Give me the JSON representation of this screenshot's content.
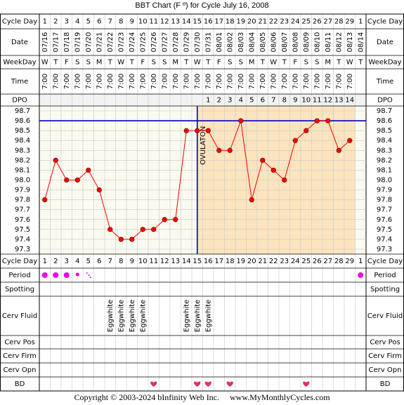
{
  "title": "BBT Chart (F º) for Cycle July 16, 2008",
  "footer": {
    "copyright": "Copyright © 2003-2024 bInfinity Web Inc.",
    "site": "www.MyMonthlyCycles.com"
  },
  "row_labels": {
    "cycle_day": "Cycle Day",
    "date": "Date",
    "weekday": "WeekDay",
    "time": "Time",
    "dpo": "DPO",
    "period": "Period",
    "spotting": "Spotting",
    "cerv_fluid": "Cerv Fluid",
    "cerv_pos": "Cerv Pos",
    "cerv_firm": "Cerv Firm",
    "cerv_opn": "Cerv Opn",
    "bd": "BD"
  },
  "ovulation_label": "OVULATON",
  "colors": {
    "line": "#ff0000",
    "point_fill": "#ff0000",
    "cover": "#0000bb",
    "post_ov_shade": "#fbe4be",
    "grid": "#c8c8c8",
    "period": "#ee00ee",
    "heart": "#dd3366"
  },
  "chart_data": {
    "type": "line",
    "ylim": [
      97.3,
      98.7
    ],
    "y_ticks": [
      "98.7",
      "98.6",
      "98.5",
      "98.4",
      "98.3",
      "98.2",
      "98.1",
      "98.0",
      "97.9",
      "97.8",
      "97.7",
      "97.6",
      "97.5",
      "97.4",
      "97.3"
    ],
    "cycle_days": [
      "1",
      "2",
      "3",
      "4",
      "5",
      "6",
      "7",
      "8",
      "9",
      "10",
      "11",
      "12",
      "13",
      "14",
      "15",
      "16",
      "17",
      "18",
      "19",
      "20",
      "21",
      "22",
      "23",
      "24",
      "25",
      "26",
      "27",
      "28",
      "29",
      "1"
    ],
    "dates": [
      "07/16",
      "07/17",
      "07/18",
      "07/19",
      "07/20",
      "07/21",
      "07/22",
      "07/23",
      "07/24",
      "07/25",
      "07/26",
      "07/27",
      "07/28",
      "07/29",
      "07/30",
      "07/31",
      "08/01",
      "08/02",
      "08/03",
      "08/04",
      "08/05",
      "08/06",
      "08/07",
      "08/08",
      "08/09",
      "08/10",
      "08/11",
      "08/12",
      "08/13",
      "08/14"
    ],
    "weekdays": [
      "W",
      "T",
      "F",
      "S",
      "S",
      "M",
      "T",
      "W",
      "T",
      "F",
      "S",
      "S",
      "M",
      "T",
      "W",
      "T",
      "F",
      "S",
      "S",
      "M",
      "T",
      "W",
      "T",
      "F",
      "S",
      "S",
      "M",
      "T",
      "W",
      "T"
    ],
    "times": [
      "7:00",
      "7:00",
      "7:00",
      "7:00",
      "7:00",
      "7:00",
      "7:00",
      "7:00",
      "7:00",
      "7:00",
      "7:00",
      "7:00",
      "7:00",
      "7:00",
      "7:00",
      "7:00",
      "7:00",
      "7:00",
      "7:00",
      "7:00",
      "7:00",
      "7:00",
      "7:00",
      "7:00",
      "7:00",
      "7:00",
      "7:00",
      "7:00",
      "7:00",
      ""
    ],
    "dpo": [
      "",
      "",
      "",
      "",
      "",
      "",
      "",
      "",
      "",
      "",
      "",
      "",
      "",
      "",
      "",
      "1",
      "2",
      "3",
      "4",
      "5",
      "6",
      "7",
      "8",
      "9",
      "10",
      "11",
      "12",
      "13",
      "14",
      ""
    ],
    "temps": [
      97.8,
      98.2,
      98.0,
      98.0,
      98.1,
      97.9,
      97.5,
      97.4,
      97.4,
      97.5,
      97.5,
      97.6,
      97.6,
      98.5,
      98.5,
      98.5,
      98.3,
      98.3,
      98.6,
      97.8,
      98.2,
      98.1,
      98.0,
      98.4,
      98.5,
      98.6,
      98.6,
      98.3,
      98.4,
      null
    ],
    "coverline": 98.6,
    "ovulation_day_index": 14,
    "period": [
      "heavy",
      "heavy",
      "heavy",
      "medium",
      "spotting",
      "",
      "",
      "",
      "",
      "",
      "",
      "",
      "",
      "",
      "",
      "",
      "",
      "",
      "",
      "",
      "",
      "",
      "",
      "",
      "",
      "",
      "",
      "",
      "",
      "heavy"
    ],
    "spotting": [
      "",
      "",
      "",
      "",
      "",
      "",
      "",
      "",
      "",
      "",
      "",
      "",
      "",
      "",
      "",
      "",
      "",
      "",
      "",
      "",
      "",
      "",
      "",
      "",
      "",
      "",
      "",
      "",
      "",
      ""
    ],
    "cerv_fluid": [
      "",
      "",
      "",
      "",
      "",
      "",
      "Eggwhite",
      "Eggwhite",
      "Eggwhite",
      "Eggwhite",
      "",
      "",
      "",
      "Eggwhite",
      "Eggwhite",
      "Eggwhite",
      "",
      "",
      "",
      "",
      "",
      "",
      "",
      "",
      "",
      "",
      "",
      "",
      "",
      ""
    ],
    "bd": [
      "",
      "",
      "",
      "",
      "",
      "",
      "",
      "",
      "",
      "",
      "heart",
      "",
      "",
      "",
      "heart",
      "heart",
      "",
      "heart",
      "",
      "",
      "",
      "",
      "",
      "",
      "heart",
      "",
      "",
      "",
      "",
      ""
    ]
  }
}
